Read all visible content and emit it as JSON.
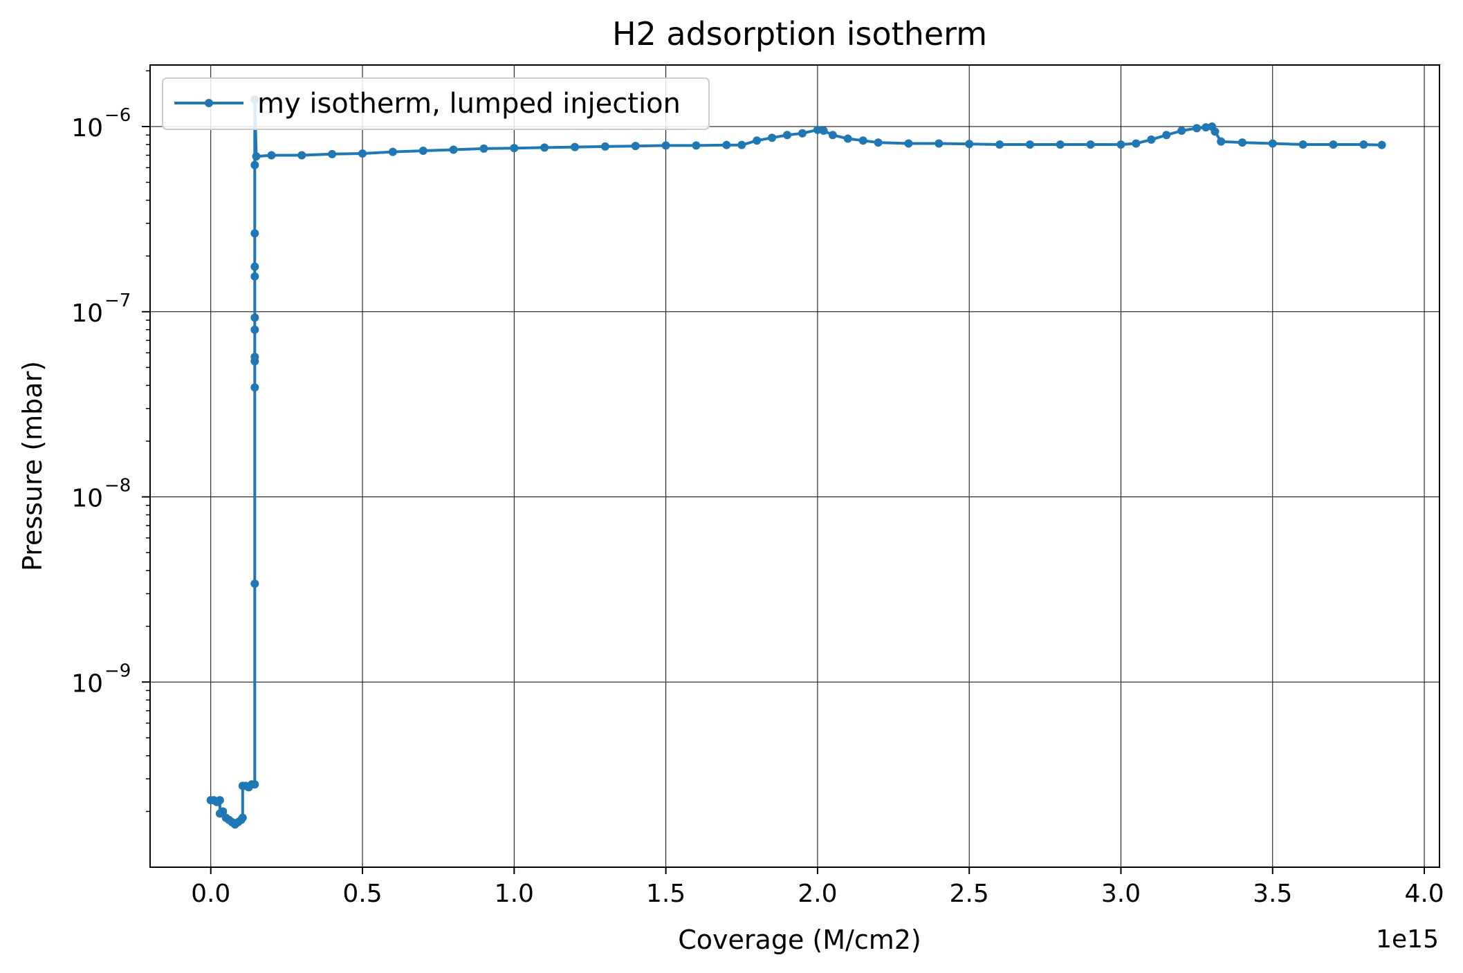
{
  "chart_data": {
    "type": "line",
    "title": "H2 adsorption isotherm",
    "xlabel": "Coverage (M/cm2)",
    "ylabel": "Pressure (mbar)",
    "x_offset_text": "1e15",
    "xscale": "linear",
    "yscale": "log",
    "xlim": [
      -0.2,
      4.05
    ],
    "ylim": [
      1e-10,
      2.15e-06
    ],
    "xticks": [
      0.0,
      0.5,
      1.0,
      1.5,
      2.0,
      2.5,
      3.0,
      3.5,
      4.0
    ],
    "xtick_labels": [
      "0.0",
      "0.5",
      "1.0",
      "1.5",
      "2.0",
      "2.5",
      "3.0",
      "3.5",
      "4.0"
    ],
    "yticks": [
      {
        "value": 1e-09,
        "base": "10",
        "exponent": "−9"
      },
      {
        "value": 1e-08,
        "base": "10",
        "exponent": "−8"
      },
      {
        "value": 1e-07,
        "base": "10",
        "exponent": "−7"
      },
      {
        "value": 1e-06,
        "base": "10",
        "exponent": "−6"
      }
    ],
    "grid": true,
    "legend_position": "top-left",
    "marker": "circle",
    "series": [
      {
        "name": "my isotherm, lumped injection",
        "color": "#1f77b4",
        "points": [
          [
            0.0,
            2.3e-10
          ],
          [
            0.01,
            2.3e-10
          ],
          [
            0.02,
            2.25e-10
          ],
          [
            0.03,
            2.3e-10
          ],
          [
            0.03,
            1.95e-10
          ],
          [
            0.04,
            2e-10
          ],
          [
            0.05,
            1.85e-10
          ],
          [
            0.06,
            1.8e-10
          ],
          [
            0.07,
            1.75e-10
          ],
          [
            0.08,
            1.7e-10
          ],
          [
            0.09,
            1.75e-10
          ],
          [
            0.1,
            1.8e-10
          ],
          [
            0.105,
            1.85e-10
          ],
          [
            0.105,
            2.75e-10
          ],
          [
            0.115,
            2.75e-10
          ],
          [
            0.125,
            2.7e-10
          ],
          [
            0.135,
            2.8e-10
          ],
          [
            0.145,
            2.8e-10
          ],
          [
            0.145,
            3.4e-09
          ],
          [
            0.145,
            3.9e-08
          ],
          [
            0.145,
            5.4e-08
          ],
          [
            0.145,
            5.7e-08
          ],
          [
            0.145,
            8e-08
          ],
          [
            0.145,
            9.3e-08
          ],
          [
            0.145,
            1.55e-07
          ],
          [
            0.145,
            1.75e-07
          ],
          [
            0.145,
            2.65e-07
          ],
          [
            0.145,
            6.2e-07
          ],
          [
            0.145,
            1.4e-06
          ],
          [
            0.15,
            6.9e-07
          ],
          [
            0.2,
            7e-07
          ],
          [
            0.3,
            7e-07
          ],
          [
            0.4,
            7.1e-07
          ],
          [
            0.5,
            7.15e-07
          ],
          [
            0.6,
            7.3e-07
          ],
          [
            0.7,
            7.4e-07
          ],
          [
            0.8,
            7.5e-07
          ],
          [
            0.9,
            7.6e-07
          ],
          [
            1.0,
            7.65e-07
          ],
          [
            1.1,
            7.7e-07
          ],
          [
            1.2,
            7.75e-07
          ],
          [
            1.3,
            7.8e-07
          ],
          [
            1.4,
            7.85e-07
          ],
          [
            1.5,
            7.9e-07
          ],
          [
            1.6,
            7.9e-07
          ],
          [
            1.7,
            7.95e-07
          ],
          [
            1.75,
            7.95e-07
          ],
          [
            1.8,
            8.4e-07
          ],
          [
            1.85,
            8.7e-07
          ],
          [
            1.9,
            9e-07
          ],
          [
            1.95,
            9.2e-07
          ],
          [
            2.0,
            9.6e-07
          ],
          [
            2.02,
            9.5e-07
          ],
          [
            2.05,
            9e-07
          ],
          [
            2.1,
            8.6e-07
          ],
          [
            2.15,
            8.4e-07
          ],
          [
            2.2,
            8.2e-07
          ],
          [
            2.3,
            8.1e-07
          ],
          [
            2.4,
            8.1e-07
          ],
          [
            2.5,
            8.05e-07
          ],
          [
            2.6,
            8e-07
          ],
          [
            2.7,
            8e-07
          ],
          [
            2.8,
            8e-07
          ],
          [
            2.9,
            8e-07
          ],
          [
            3.0,
            8e-07
          ],
          [
            3.05,
            8.1e-07
          ],
          [
            3.1,
            8.5e-07
          ],
          [
            3.15,
            9e-07
          ],
          [
            3.2,
            9.5e-07
          ],
          [
            3.25,
            9.8e-07
          ],
          [
            3.28,
            9.9e-07
          ],
          [
            3.3,
            1e-06
          ],
          [
            3.31,
            9.4e-07
          ],
          [
            3.33,
            8.3e-07
          ],
          [
            3.4,
            8.2e-07
          ],
          [
            3.5,
            8.1e-07
          ],
          [
            3.6,
            8e-07
          ],
          [
            3.7,
            8e-07
          ],
          [
            3.8,
            8e-07
          ],
          [
            3.86,
            7.95e-07
          ]
        ]
      }
    ]
  }
}
